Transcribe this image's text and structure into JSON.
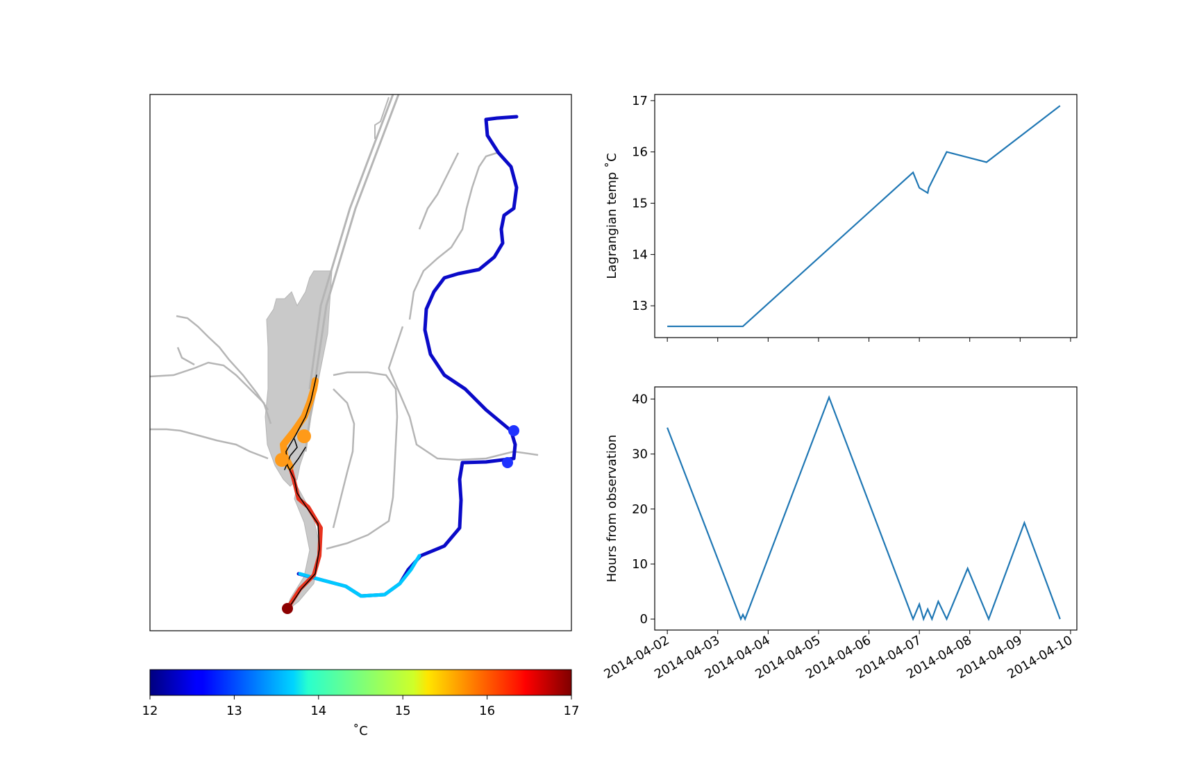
{
  "map": {
    "colors": {
      "land": "#c9c9c9",
      "channel": "#b5b5b5",
      "outline": "#000000"
    }
  },
  "colorbar": {
    "label": "˚C",
    "ticks": [
      "12",
      "13",
      "14",
      "15",
      "16",
      "17"
    ],
    "range": [
      12,
      17
    ],
    "colormap": "jet"
  },
  "chart_data": [
    {
      "type": "line",
      "title": "",
      "xlabel": "",
      "ylabel": "Lagrangian temp ˚C",
      "color": "#1f77b4",
      "ylim": [
        12.38,
        17.12
      ],
      "xlim": [
        "2014-04-01T18:00",
        "2014-04-10T03:00"
      ],
      "yticks": [
        "13",
        "14",
        "15",
        "16",
        "17"
      ],
      "x": [
        "2014-04-02T00:00",
        "2014-04-03T12:00",
        "2014-04-06T21:00",
        "2014-04-07T00:00",
        "2014-04-07T04:00",
        "2014-04-07T04:30",
        "2014-04-07T13:00",
        "2014-04-08T08:00",
        "2014-04-09T19:00"
      ],
      "y": [
        12.6,
        12.6,
        15.6,
        15.3,
        15.2,
        15.3,
        16.0,
        15.8,
        16.9
      ]
    },
    {
      "type": "line",
      "title": "",
      "xlabel": "",
      "ylabel": "Hours from observation",
      "color": "#1f77b4",
      "ylim": [
        -2,
        42.2
      ],
      "xlim": [
        "2014-04-01T18:00",
        "2014-04-10T03:00"
      ],
      "yticks": [
        "0",
        "10",
        "20",
        "30",
        "40"
      ],
      "xticks": [
        "2014-04-02",
        "2014-04-03",
        "2014-04-04",
        "2014-04-05",
        "2014-04-06",
        "2014-04-07",
        "2014-04-08",
        "2014-04-09",
        "2014-04-10"
      ],
      "x": [
        "2014-04-02T00:00",
        "2014-04-03T11:00",
        "2014-04-03T12:00",
        "2014-04-03T13:00",
        "2014-04-05T05:00",
        "2014-04-06T21:00",
        "2014-04-07T00:00",
        "2014-04-07T02:00",
        "2014-04-07T04:00",
        "2014-04-07T06:00",
        "2014-04-07T09:00",
        "2014-04-07T13:00",
        "2014-04-07T23:00",
        "2014-04-08T09:00",
        "2014-04-09T02:00",
        "2014-04-09T19:00"
      ],
      "y": [
        34.8,
        0,
        0.8,
        0,
        40.3,
        0,
        2.7,
        0,
        1.8,
        0,
        3.2,
        0,
        9.2,
        0,
        17.5,
        0
      ]
    }
  ]
}
